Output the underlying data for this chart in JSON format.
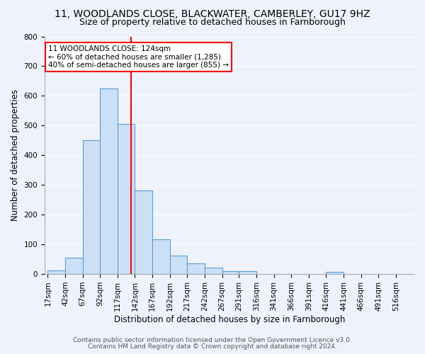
{
  "title1": "11, WOODLANDS CLOSE, BLACKWATER, CAMBERLEY, GU17 9HZ",
  "title2": "Size of property relative to detached houses in Farnborough",
  "xlabel": "Distribution of detached houses by size in Farnborough",
  "ylabel": "Number of detached properties",
  "bin_edges": [
    4.5,
    29.5,
    54.5,
    79.5,
    104.5,
    129.5,
    154.5,
    179.5,
    204.5,
    229.5,
    254.5,
    278.5,
    303.5,
    328.5,
    353.5,
    378.5,
    403.5,
    428.5,
    453.5,
    478.5,
    503.5,
    528.5
  ],
  "bar_heights": [
    12,
    55,
    450,
    625,
    505,
    282,
    118,
    63,
    37,
    22,
    10,
    10,
    0,
    0,
    0,
    0,
    8,
    0,
    0,
    0,
    0
  ],
  "x_tick_positions": [
    4.5,
    29.5,
    54.5,
    79.5,
    104.5,
    129.5,
    154.5,
    179.5,
    204.5,
    229.5,
    254.5,
    278.5,
    303.5,
    328.5,
    353.5,
    378.5,
    403.5,
    428.5,
    453.5,
    478.5,
    503.5
  ],
  "x_tick_labels": [
    "17sqm",
    "42sqm",
    "67sqm",
    "92sqm",
    "117sqm",
    "142sqm",
    "167sqm",
    "192sqm",
    "217sqm",
    "242sqm",
    "267sqm",
    "291sqm",
    "316sqm",
    "341sqm",
    "366sqm",
    "391sqm",
    "416sqm",
    "441sqm",
    "466sqm",
    "491sqm",
    "516sqm"
  ],
  "bar_facecolor": "#cce0f5",
  "bar_edgecolor": "#5b9bd5",
  "redline_x": 124,
  "ylim": [
    0,
    800
  ],
  "xlim": [
    0,
    530
  ],
  "annotation_text": "11 WOODLANDS CLOSE: 124sqm\n← 60% of detached houses are smaller (1,285)\n40% of semi-detached houses are larger (855) →",
  "annotation_box_color": "white",
  "annotation_box_edgecolor": "red",
  "footer1": "Contains HM Land Registry data © Crown copyright and database right 2024.",
  "footer2": "Contains public sector information licensed under the Open Government Licence v3.0.",
  "background_color": "#eef3fb",
  "grid_color": "white",
  "title1_fontsize": 10,
  "title2_fontsize": 9,
  "xlabel_fontsize": 8.5,
  "ylabel_fontsize": 8.5,
  "tick_fontsize": 7.5,
  "footer_fontsize": 6.5,
  "annotation_fontsize": 7.5
}
